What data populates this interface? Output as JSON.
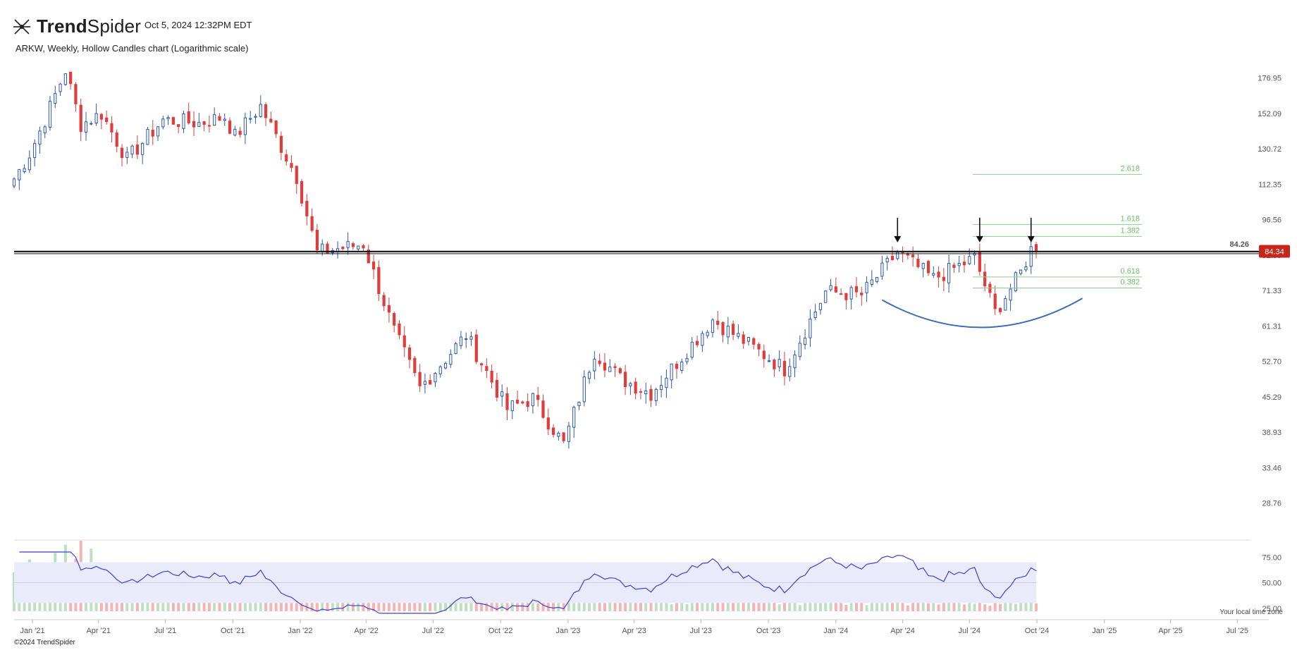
{
  "header": {
    "brand_bold": "Trend",
    "brand_light": "Spider",
    "timestamp": "Oct 5, 2024 12:32PM EDT",
    "subtitle": "ARKW, Weekly, Hollow Candles chart (Logarithmic scale)"
  },
  "footer": {
    "copyright": "©2024 TrendSpider",
    "timezone": "Your local time zone"
  },
  "colors": {
    "up": "#2d57b4",
    "down": "#e03c3c",
    "vol_up": "#bfe0bf",
    "vol_down": "#f7b3b3",
    "rsi_band": "#e9ebfb",
    "rsi_line": "#3f3fd1",
    "fib": "#8dce8d",
    "accent_red": "#c8261a"
  },
  "chart_data": {
    "type": "candlestick",
    "symbol": "ARKW",
    "interval": "Weekly",
    "scale": "log",
    "ylim": [
      25,
      200
    ],
    "y_ticks": [
      "176.95",
      "152.09",
      "130.72",
      "112.35",
      "96.56",
      "82.99",
      "71.33",
      "61.31",
      "52.70",
      "45.29",
      "38.93",
      "33.46",
      "28.76"
    ],
    "x_ticks": [
      "Jan '21",
      "Apr '21",
      "Jul '21",
      "Oct '21",
      "Jan '22",
      "Apr '22",
      "Jul '22",
      "Oct '22",
      "Jan '23",
      "Apr '23",
      "Jul '23",
      "Oct '23",
      "Jan '24",
      "Apr '24",
      "Jul '24",
      "Oct '24",
      "Jan '25",
      "Apr '25",
      "Jul '25"
    ],
    "weekly_close_path": [
      {
        "date": "2020-12-07",
        "close": 115
      },
      {
        "date": "2020-12-28",
        "close": 128
      },
      {
        "date": "2021-01-18",
        "close": 148
      },
      {
        "date": "2021-02-15",
        "close": 183
      },
      {
        "date": "2021-03-08",
        "close": 145
      },
      {
        "date": "2021-04-05",
        "close": 152
      },
      {
        "date": "2021-05-10",
        "close": 125
      },
      {
        "date": "2021-06-28",
        "close": 148
      },
      {
        "date": "2021-08-16",
        "close": 146
      },
      {
        "date": "2021-09-20",
        "close": 150
      },
      {
        "date": "2021-10-04",
        "close": 138
      },
      {
        "date": "2021-11-08",
        "close": 157
      },
      {
        "date": "2021-12-27",
        "close": 116
      },
      {
        "date": "2022-01-24",
        "close": 84
      },
      {
        "date": "2022-03-28",
        "close": 87
      },
      {
        "date": "2022-05-09",
        "close": 60
      },
      {
        "date": "2022-06-13",
        "close": 47
      },
      {
        "date": "2022-08-15",
        "close": 59
      },
      {
        "date": "2022-10-10",
        "close": 43
      },
      {
        "date": "2022-11-14",
        "close": 45
      },
      {
        "date": "2022-12-26",
        "close": 37
      },
      {
        "date": "2023-02-06",
        "close": 55
      },
      {
        "date": "2023-03-13",
        "close": 49
      },
      {
        "date": "2023-04-24",
        "close": 46
      },
      {
        "date": "2023-07-17",
        "close": 63
      },
      {
        "date": "2023-10-23",
        "close": 51
      },
      {
        "date": "2023-12-18",
        "close": 71
      },
      {
        "date": "2024-02-05",
        "close": 70
      },
      {
        "date": "2024-03-25",
        "close": 84
      },
      {
        "date": "2024-05-13",
        "close": 75
      },
      {
        "date": "2024-07-08",
        "close": 82
      },
      {
        "date": "2024-08-05",
        "close": 65
      },
      {
        "date": "2024-09-09",
        "close": 77
      },
      {
        "date": "2024-09-23",
        "close": 85
      },
      {
        "date": "2024-10-04",
        "close": 84.34
      }
    ],
    "horizontal_level": {
      "value": 84.26,
      "label": "84.26"
    },
    "last_price": {
      "value": 84.34,
      "label": "84.34"
    },
    "fib_levels": [
      {
        "label": "2.618",
        "value": 117.2
      },
      {
        "label": "1.618",
        "value": 94.6
      },
      {
        "label": "1.382",
        "value": 89.9
      },
      {
        "label": "0.618",
        "value": 75.6
      },
      {
        "label": "0.382",
        "value": 72.1
      }
    ],
    "arrows_at": [
      "2024-03-25",
      "2024-07-15",
      "2024-09-23"
    ],
    "rsi": {
      "ticks": [
        "75.00",
        "50.00",
        "25.00"
      ],
      "band": [
        30,
        70
      ]
    }
  }
}
